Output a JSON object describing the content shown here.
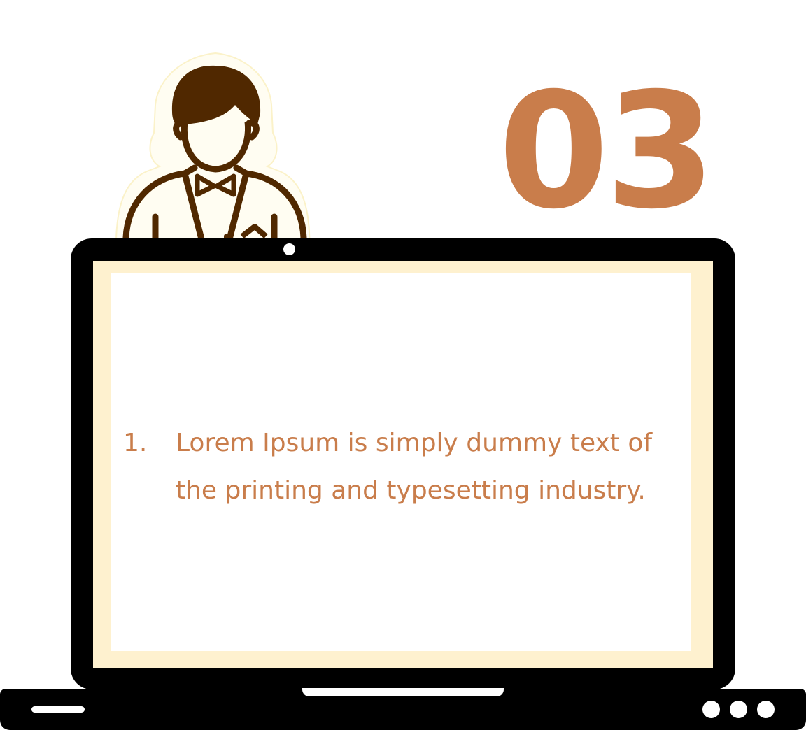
{
  "slide": {
    "number": "03",
    "list": {
      "items": [
        {
          "marker": "1.",
          "text": "Lorem Ipsum is simply dummy text of the printing and typesetting industry."
        }
      ]
    }
  },
  "colors": {
    "accent": "#c97d4b",
    "character": "#502800",
    "screen_border": "#fef1cf",
    "device": "#000000"
  },
  "icons": {
    "person": "waiter-icon",
    "device": "laptop-icon"
  }
}
